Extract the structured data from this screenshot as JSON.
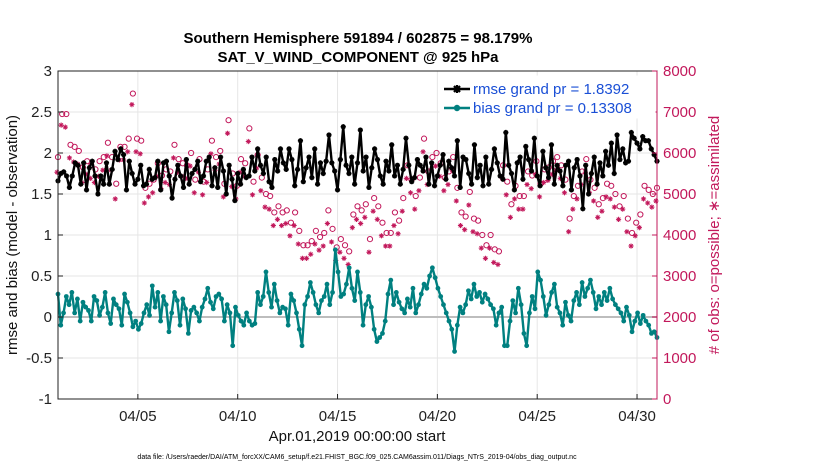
{
  "chart_data": {
    "type": "line",
    "title": "Southern Hemisphere 591894 / 602875 = 98.179%",
    "subtitle": "SAT_V_WIND_COMPONENT @ 925 hPa",
    "xlabel": "Apr.01,2019 00:00:00 start",
    "ylabel": "rmse and bias (model - observation)",
    "y2label": "# of obs: o=possible; ∗=assimilated",
    "footnote": "data file: /Users/raeder/DAI/ATM_forcXX/CAM6_setup/f.e21.FHIST_BGC.f09_025.CAM6assim.011/Diags_NTrS_2019-04/obs_diag_output.nc",
    "xlim": [
      1,
      31
    ],
    "ylim": [
      -1,
      3
    ],
    "y2lim": [
      0,
      8000
    ],
    "x_ticks": [
      5,
      10,
      15,
      20,
      25,
      30
    ],
    "x_tick_labels": [
      "04/05",
      "04/10",
      "04/15",
      "04/20",
      "04/25",
      "04/30"
    ],
    "y_ticks": [
      -1,
      -0.5,
      0,
      0.5,
      1,
      1.5,
      2,
      2.5,
      3
    ],
    "y_tick_labels": [
      "-1",
      "-0.5",
      "0",
      "0.5",
      "1",
      "1.5",
      "2",
      "2.5",
      "3"
    ],
    "y2_ticks": [
      0,
      1000,
      2000,
      3000,
      4000,
      5000,
      6000,
      7000,
      8000
    ],
    "y2_tick_labels": [
      "0",
      "1000",
      "2000",
      "3000",
      "4000",
      "5000",
      "6000",
      "7000",
      "8000"
    ],
    "grid": true,
    "legend_position": "top-right",
    "colors": {
      "rmse": "#000000",
      "bias": "#008080",
      "obs": "#c2185b",
      "zero": "#bdbdbd"
    },
    "series": [
      {
        "name": "rmse grand pr = 1.8392",
        "axis": "left",
        "values": [
          1.66,
          1.75,
          1.77,
          1.72,
          1.58,
          1.72,
          1.88,
          1.85,
          1.62,
          1.88,
          1.55,
          1.82,
          1.9,
          1.72,
          1.5,
          1.72,
          1.62,
          1.88,
          1.62,
          1.8,
          2.02,
          1.92,
          2.05,
          1.98,
          1.55,
          1.9,
          1.75,
          1.62,
          1.68,
          1.85,
          1.6,
          1.62,
          1.8,
          1.68,
          1.7,
          1.9,
          1.55,
          1.88,
          1.9,
          1.72,
          1.45,
          1.68,
          1.85,
          1.72,
          1.58,
          1.92,
          1.62,
          1.75,
          1.8,
          1.9,
          1.65,
          1.72,
          1.9,
          1.95,
          1.6,
          1.82,
          1.58,
          1.95,
          1.78,
          1.5,
          1.85,
          1.68,
          1.42,
          1.75,
          1.62,
          1.8,
          1.7,
          1.72,
          1.95,
          1.78,
          2.05,
          1.85,
          1.75,
          1.95,
          1.65,
          1.58,
          1.92,
          1.78,
          2.05,
          1.88,
          1.8,
          2.05,
          1.92,
          1.6,
          1.8,
          2.15,
          1.65,
          1.82,
          1.95,
          1.7,
          2.05,
          1.62,
          1.88,
          1.75,
          1.9,
          2.22,
          1.88,
          1.78,
          1.55,
          1.92,
          2.32,
          1.85,
          1.75,
          1.95,
          1.62,
          1.88,
          2.28,
          1.78,
          1.95,
          1.58,
          1.82,
          2.05,
          1.92,
          1.72,
          1.62,
          1.9,
          1.78,
          2.1,
          1.72,
          1.85,
          1.62,
          1.8,
          2.18,
          1.85,
          1.65,
          1.7,
          1.92,
          1.85,
          1.78,
          1.95,
          1.62,
          1.88,
          1.6,
          1.72,
          1.85,
          1.98,
          1.68,
          1.9,
          1.82,
          1.72,
          2.15,
          1.58,
          1.95,
          1.92,
          1.75,
          1.62,
          2.1,
          1.7,
          1.85,
          1.6,
          1.95,
          1.62,
          1.8,
          2.05,
          1.88,
          1.72,
          1.68,
          2.25,
          1.85,
          1.75,
          1.55,
          1.88,
          1.95,
          1.68,
          2.08,
          1.92,
          1.78,
          2.18,
          1.72,
          1.6,
          2.02,
          1.82,
          1.7,
          2.1,
          1.62,
          1.85,
          1.78,
          1.6,
          1.85,
          1.9,
          1.55,
          1.82,
          1.92,
          1.72,
          1.32,
          1.85,
          1.5,
          1.75,
          1.95,
          1.62,
          1.88,
          1.72,
          2.02,
          1.85,
          2.12,
          1.75,
          2.22,
          1.92,
          2.05,
          1.88,
          1.9,
          2.25,
          2.18,
          2.12,
          2.05,
          2.2,
          2.15,
          2.15,
          2.05,
          1.98,
          1.9
        ]
      },
      {
        "name": "bias grand pr = 0.13308",
        "axis": "left",
        "values": [
          0.28,
          -0.1,
          0.05,
          0.25,
          0.15,
          0.3,
          0.05,
          0.22,
          -0.05,
          0.18,
          0.12,
          0.08,
          -0.05,
          0.25,
          0.2,
          0.02,
          0.12,
          0.3,
          0.05,
          -0.08,
          0.22,
          0.15,
          0.1,
          -0.1,
          0.28,
          0.18,
          0.05,
          -0.12,
          -0.05,
          -0.15,
          -0.08,
          0.05,
          0.15,
          0.02,
          0.38,
          0.12,
          0.3,
          -0.05,
          0.25,
          0.15,
          -0.18,
          0.05,
          0.3,
          0.2,
          -0.1,
          0.22,
          0.1,
          -0.2,
          0.08,
          0.12,
          0.05,
          -0.05,
          0.12,
          0.22,
          0.35,
          0.18,
          0.1,
          0.25,
          0.28,
          0.22,
          -0.05,
          0.15,
          0.05,
          -0.35,
          0.12,
          0.02,
          -0.05,
          -0.1,
          0.05,
          -0.05,
          -0.1,
          -0.08,
          0.3,
          0.15,
          0.25,
          0.55,
          0.3,
          0.12,
          0.4,
          0.2,
          0.05,
          0.12,
          0.1,
          -0.1,
          0.28,
          0.2,
          0.05,
          -0.15,
          -0.35,
          0.15,
          0.25,
          0.42,
          0.3,
          0.15,
          0.05,
          0.2,
          0.25,
          0.4,
          0.15,
          0.3,
          0.82,
          0.55,
          0.25,
          0.28,
          0.4,
          0.6,
          0.35,
          0.2,
          0.55,
          0.3,
          -0.1,
          0.15,
          0.25,
          0.12,
          -0.15,
          -0.3,
          -0.25,
          -0.2,
          -0.05,
          0.28,
          0.45,
          0.15,
          0.3,
          0.18,
          0.1,
          0.05,
          0.22,
          0.12,
          0.35,
          0.05,
          0.15,
          0.28,
          0.4,
          0.35,
          0.5,
          0.6,
          0.48,
          0.35,
          0.25,
          0.15,
          0.05,
          -0.05,
          -0.15,
          -0.42,
          -0.1,
          0.12,
          0.05,
          0.15,
          0.32,
          0.22,
          0.4,
          0.25,
          0.3,
          0.18,
          0.28,
          0.22,
          0.15,
          0.1,
          -0.1,
          0.05,
          0.12,
          -0.35,
          -0.35,
          -0.05,
          0.2,
          0.05,
          0.35,
          0.15,
          -0.2,
          -0.35,
          0.05,
          0.25,
          0.1,
          0.55,
          0.45,
          0.25,
          0.02,
          0.15,
          0.3,
          0.4,
          0.12,
          0.05,
          -0.1,
          0.18,
          0.02,
          -0.05,
          0.2,
          0.3,
          0.15,
          0.42,
          0.25,
          0.35,
          0.45,
          0.3,
          0.1,
          0.25,
          0.15,
          0.3,
          0.2,
          0.35,
          0.22,
          0.15,
          0.1,
          0.05,
          -0.05,
          0.12,
          0.02,
          -0.18,
          -0.05,
          0.05,
          -0.08,
          0.02,
          -0.05,
          -0.1,
          -0.2,
          -0.18,
          -0.25
        ]
      },
      {
        "name": "possible",
        "axis": "right",
        "marker": "o",
        "values": [
          5900,
          6950,
          6950,
          6200,
          6150,
          6050,
          5650,
          5800,
          5700,
          5600,
          5800,
          5900,
          6250,
          5900,
          5250,
          6150,
          6150,
          6350,
          7450,
          6350,
          6300,
          5150,
          5250,
          5350,
          5750,
          5450,
          5600,
          5550,
          6200,
          5850,
          5750,
          5700,
          6000,
          5350,
          5850,
          5300,
          5600,
          6300,
          5900,
          6050,
          5250,
          6800,
          5500,
          5200,
          5850,
          5750,
          6600,
          5300,
          5950,
          5400,
          5000,
          4950,
          4550,
          4700,
          4550,
          4600,
          4300,
          4550,
          4100,
          3750,
          3750,
          3850,
          4100,
          3950,
          4050,
          4600,
          4150,
          3700,
          3900,
          3750,
          3600,
          4500,
          4700,
          4600,
          4750,
          3900,
          4900,
          4700,
          4300,
          4050,
          4050,
          4550,
          4350,
          4900,
          5700,
          5350,
          4950,
          5400,
          6350,
          5550,
          5900,
          6000,
          5750,
          5400,
          5550,
          5900,
          5150,
          4550,
          4450,
          5050,
          4400,
          4350,
          4000,
          3750,
          4000,
          3650,
          3600,
          5700,
          5300,
          4750,
          5200,
          4950,
          4950,
          5550,
          5450,
          5800,
          5250,
          5600,
          5650,
          5800,
          5900,
          5700,
          5350,
          4400,
          4950,
          5200,
          5550,
          5850,
          5350,
          5150,
          4750,
          4900,
          5250,
          5200,
          5000,
          4700,
          4950,
          4400,
          4050,
          4300,
          4500,
          5200,
          5100,
          5000,
          5150
        ]
      },
      {
        "name": "assimilated",
        "axis": "right",
        "marker": "*",
        "values": [
          5750,
          6900,
          6850,
          6100,
          6000,
          5950,
          5500,
          5700,
          5600,
          5500,
          5650,
          5800,
          6150,
          5800,
          5100,
          6050,
          6050,
          6250,
          7400,
          6250,
          6200,
          5000,
          5150,
          5250,
          5650,
          5350,
          5500,
          5450,
          6100,
          5750,
          5650,
          5600,
          5900,
          5250,
          5750,
          5200,
          5500,
          6200,
          5800,
          5950,
          5150,
          6700,
          5400,
          5100,
          5750,
          5650,
          6500,
          5200,
          5850,
          5300,
          4900,
          4850,
          4450,
          4600,
          4450,
          4500,
          4200,
          4450,
          4000,
          3650,
          3650,
          3750,
          4000,
          3850,
          3950,
          4500,
          4050,
          3600,
          3800,
          3650,
          3500,
          4400,
          4600,
          4500,
          4650,
          3800,
          4800,
          4600,
          4200,
          3950,
          3950,
          4450,
          4250,
          4800,
          5600,
          5250,
          4850,
          5300,
          6250,
          5450,
          5800,
          5900,
          5650,
          5300,
          5450,
          5800,
          5050,
          4450,
          4350,
          4950,
          4300,
          4250,
          3900,
          3650,
          3900,
          3550,
          3500,
          5600,
          5200,
          4650,
          5100,
          4850,
          4850,
          5450,
          5350,
          5700,
          5150,
          5500,
          5550,
          5700,
          5800,
          5600,
          5250,
          4300,
          4850,
          5100,
          5450,
          5750,
          5250,
          5050,
          4650,
          4800,
          5150,
          5100,
          4900,
          4600,
          4850,
          4300,
          3950,
          4200,
          4400,
          5100,
          5000,
          4900,
          5050
        ]
      }
    ]
  }
}
